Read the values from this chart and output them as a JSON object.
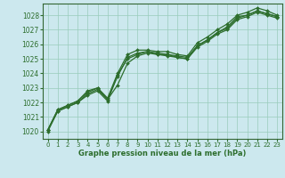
{
  "xlabel": "Graphe pression niveau de la mer (hPa)",
  "ylabel": "",
  "xlim": [
    -0.5,
    23.5
  ],
  "ylim": [
    1019.5,
    1028.8
  ],
  "xticks": [
    0,
    1,
    2,
    3,
    4,
    5,
    6,
    7,
    8,
    9,
    10,
    11,
    12,
    13,
    14,
    15,
    16,
    17,
    18,
    19,
    20,
    21,
    22,
    23
  ],
  "yticks": [
    1020,
    1021,
    1022,
    1023,
    1024,
    1025,
    1026,
    1027,
    1028
  ],
  "background_color": "#cce8ee",
  "grid_color": "#99ccbb",
  "line_color": "#2d6e2d",
  "series": [
    [
      1020.1,
      1021.5,
      1021.8,
      1022.1,
      1022.8,
      1023.0,
      1022.3,
      1024.0,
      1025.3,
      1025.6,
      1025.6,
      1025.5,
      1025.5,
      1025.3,
      1025.2,
      1026.1,
      1026.5,
      1027.0,
      1027.4,
      1028.0,
      1028.2,
      1028.5,
      1028.3,
      1028.0
    ],
    [
      1020.1,
      1021.5,
      1021.8,
      1022.1,
      1022.7,
      1023.0,
      1022.2,
      1023.2,
      1024.7,
      1025.2,
      1025.4,
      1025.3,
      1025.3,
      1025.2,
      1025.1,
      1025.9,
      1026.3,
      1026.8,
      1027.2,
      1027.9,
      1028.0,
      1028.3,
      1028.1,
      1027.9
    ],
    [
      1020.1,
      1021.4,
      1021.7,
      1022.0,
      1022.6,
      1022.9,
      1022.2,
      1023.8,
      1025.1,
      1025.4,
      1025.5,
      1025.4,
      1025.3,
      1025.1,
      1025.0,
      1025.9,
      1026.3,
      1026.8,
      1027.1,
      1027.8,
      1028.0,
      1028.3,
      1028.1,
      1027.9
    ],
    [
      1020.0,
      1021.4,
      1021.7,
      1022.0,
      1022.5,
      1022.8,
      1022.1,
      1023.9,
      1025.0,
      1025.3,
      1025.5,
      1025.3,
      1025.2,
      1025.1,
      1025.0,
      1025.8,
      1026.2,
      1026.7,
      1027.0,
      1027.7,
      1027.9,
      1028.2,
      1028.0,
      1027.8
    ]
  ]
}
